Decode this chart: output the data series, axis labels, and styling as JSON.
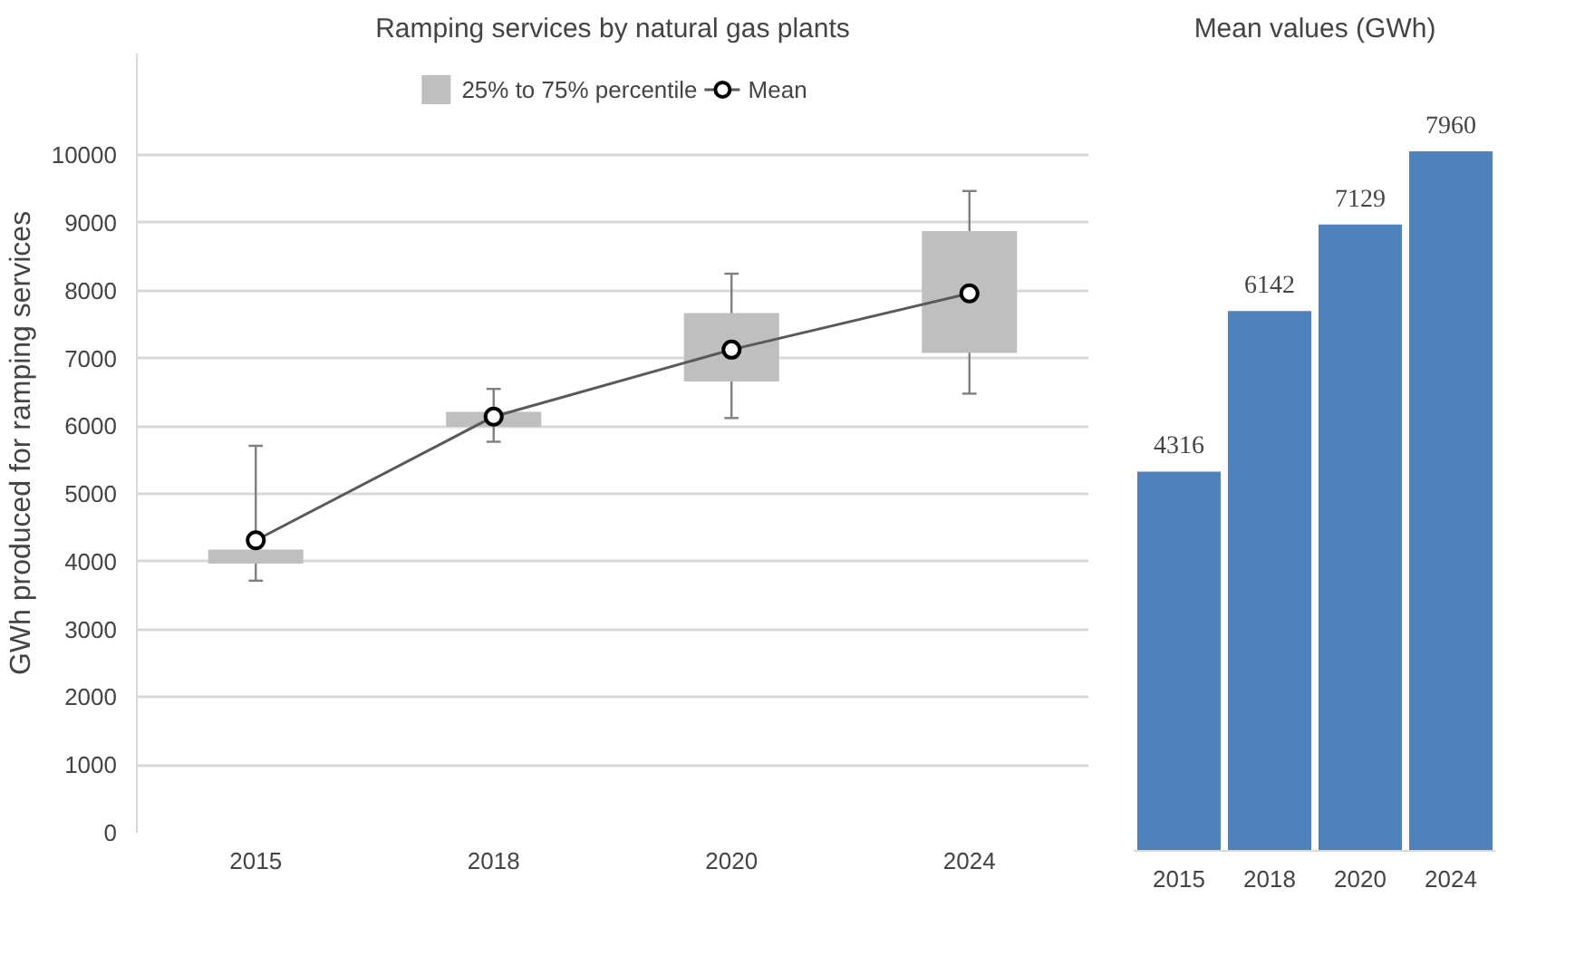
{
  "chart_data": [
    {
      "type": "bar",
      "title": "Ramping services by natural gas plants",
      "ylabel": "GWh produced for ramping services",
      "categories": [
        "2015",
        "2018",
        "2020",
        "2024"
      ],
      "ylim": [
        0,
        11500
      ],
      "yticks": [
        0,
        1000,
        2000,
        3000,
        4000,
        5000,
        6000,
        7000,
        8000,
        9000,
        10000
      ],
      "grid": "y",
      "legend": "top",
      "series": [
        {
          "type": "bar",
          "name": "25% to 75% percentile",
          "color": "#bfbfbf",
          "base": [
            3970,
            5990,
            6660,
            7080
          ],
          "values": [
            210,
            220,
            1010,
            1800
          ],
          "errors": [
            [
              3720,
              5710
            ],
            [
              5770,
              6550
            ],
            [
              6120,
              8250
            ],
            [
              6480,
              9470
            ]
          ]
        },
        {
          "type": "line",
          "name": "Mean",
          "color": "#595959",
          "marker": "circle",
          "line_style": "solid",
          "values": [
            4316,
            6142,
            7129,
            7960
          ]
        }
      ]
    },
    {
      "type": "bar",
      "title": "Mean values (GWh)",
      "categories": [
        "2015",
        "2018",
        "2020",
        "2024"
      ],
      "values": [
        4316,
        6142,
        7129,
        7960
      ],
      "color": "#4f81bd",
      "data_labels": true
    }
  ]
}
